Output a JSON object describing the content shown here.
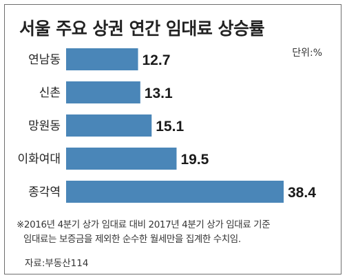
{
  "chart_data": {
    "type": "bar",
    "orientation": "horizontal",
    "title": "서울 주요 상권 연간 임대료 상승률",
    "unit": "단위:%",
    "categories": [
      "연남동",
      "신촌",
      "망원동",
      "이화여대",
      "종각역"
    ],
    "values": [
      12.7,
      13.1,
      15.1,
      19.5,
      38.4
    ],
    "value_labels": [
      "12.7",
      "13.1",
      "15.1",
      "19.5",
      "38.4"
    ],
    "bar_color": "#4a86b8",
    "grid": false,
    "legend": "none"
  },
  "note": {
    "line1": "※2016년 4분기 상가 임대료 대비 2017년 4분기 상가 임대료 기준",
    "line2": "임대료는 보증금을 제외한 순수한 월세만을 집계한 수치임."
  },
  "source": "자료:부동산114"
}
